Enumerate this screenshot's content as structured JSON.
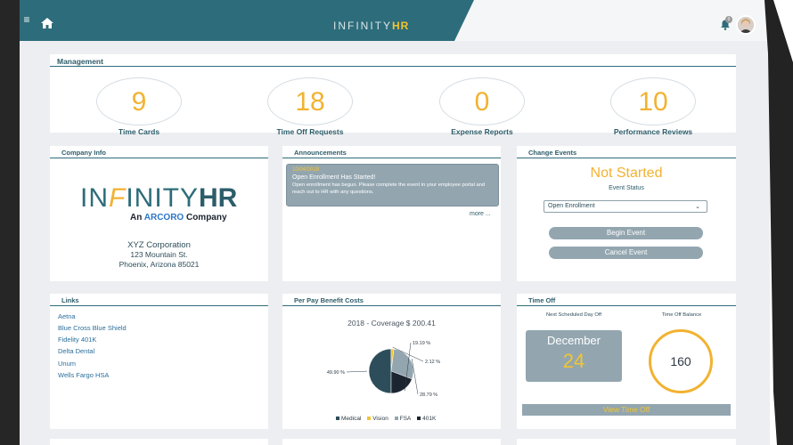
{
  "brand": {
    "prefix": "IN",
    "middle": "FINITY",
    "suffix": "HR"
  },
  "topbar": {
    "menu_icon": "hamburger-icon",
    "home_icon": "home-icon",
    "bell_icon": "bell-icon",
    "notification_count": "0"
  },
  "management": {
    "title": "Management",
    "stats": [
      {
        "value": "9",
        "label": "Time Cards"
      },
      {
        "value": "18",
        "label": "Time Off Requests"
      },
      {
        "value": "0",
        "label": "Expense Reports"
      },
      {
        "value": "10",
        "label": "Performance Reviews"
      }
    ]
  },
  "company_info": {
    "title": "Company Info",
    "logo_left": "IN",
    "logo_f": "F",
    "logo_mid": "INITY",
    "logo_hr": "HR",
    "tagline_prefix": "An ",
    "tagline_brand": "ARCORO",
    "tagline_suffix": " Company",
    "name": "XYZ Corporation",
    "street": "123 Mountain St.",
    "city": "Phoenix, Arizona 85021"
  },
  "announcements": {
    "title": "Announcements",
    "date": "10/04/2018",
    "headline": "Open Enrollment Has Started!",
    "body": "Open enrollment has begun. Please complete the event in your employee portal and reach out to HR with any questions.",
    "more": "more ..."
  },
  "change_events": {
    "title": "Change Events",
    "status": "Not Started",
    "status_label": "Event Status",
    "selected": "Open Enrollment",
    "begin": "Begin Event",
    "cancel": "Cancel Event"
  },
  "links": {
    "title": "Links",
    "items": [
      "Aetna",
      "Blue Cross Blue Shield",
      "Fidelity 401K",
      "Delta Dental",
      "Unum",
      "Wells Fargo HSA"
    ]
  },
  "benefit": {
    "title": "Per Pay Benefit Costs",
    "chart_title": "2018 - Coverage $ 200.41",
    "legend": [
      "Medical",
      "Vision",
      "FSA",
      "401K"
    ],
    "colors": [
      "#2d4d5a",
      "#f2c531",
      "#93a6b0",
      "#1c2430"
    ]
  },
  "chart_data": {
    "type": "pie",
    "title": "2018 - Coverage $ 200.41",
    "categories": [
      "Medical",
      "Vision",
      "FSA",
      "401K"
    ],
    "values": [
      49.9,
      2.12,
      28.79,
      19.19
    ],
    "labels": [
      "49.90 %",
      "2.12 %",
      "28.79 %",
      "19.19 %"
    ],
    "legend_position": "bottom"
  },
  "time_off": {
    "title": "Time Off",
    "next_label": "Next Scheduled Day Off",
    "balance_label": "Time Off Balance",
    "month": "December",
    "day": "24",
    "balance": "160",
    "view": "View Time Off"
  }
}
